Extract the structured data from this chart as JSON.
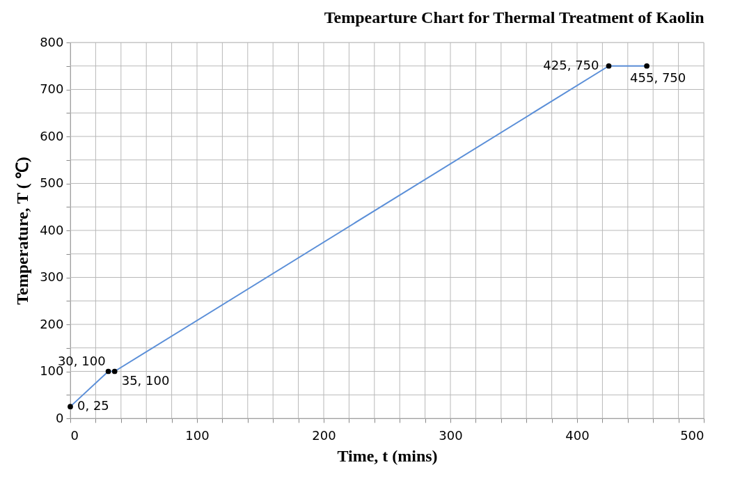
{
  "chart_data": {
    "type": "line",
    "title": "Tempearture Chart for Thermal Treatment of Kaolin",
    "xlabel": "Time, t (mins)",
    "ylabel": "Temperature, T ( ℃)",
    "x": [
      0,
      30,
      35,
      425,
      455
    ],
    "series": [
      {
        "color": "#5b8fd8",
        "values": [
          25,
          100,
          100,
          750,
          750
        ]
      }
    ],
    "xlim": [
      0,
      500
    ],
    "ylim": [
      0,
      800
    ],
    "xticks": [
      0,
      {
        "value": 20,
        "label": null
      },
      {
        "value": 40,
        "label": null
      },
      {
        "value": 60,
        "label": null
      },
      {
        "value": 80,
        "label": null
      },
      100,
      {
        "value": 120,
        "label": null
      },
      {
        "value": 140,
        "label": null
      },
      {
        "value": 160,
        "label": null
      },
      {
        "value": 180,
        "label": null
      },
      200,
      {
        "value": 220,
        "label": null
      },
      {
        "value": 240,
        "label": null
      },
      {
        "value": 260,
        "label": null
      },
      {
        "value": 280,
        "label": null
      },
      300,
      {
        "value": 320,
        "label": null
      },
      {
        "value": 340,
        "label": null
      },
      {
        "value": 360,
        "label": null
      },
      {
        "value": 380,
        "label": null
      },
      400,
      {
        "value": 420,
        "label": null
      },
      {
        "value": 440,
        "label": null
      },
      {
        "value": 460,
        "label": null
      },
      {
        "value": 480,
        "label": null
      },
      500
    ],
    "yticks": [
      0,
      {
        "value": 50,
        "label": null
      },
      100,
      {
        "value": 150,
        "label": null
      },
      200,
      {
        "value": 250,
        "label": null
      },
      300,
      {
        "value": 350,
        "label": null
      },
      400,
      {
        "value": 450,
        "label": null
      },
      500,
      {
        "value": 550,
        "label": null
      },
      600,
      {
        "value": 650,
        "label": null
      },
      700,
      {
        "value": 750,
        "label": null
      },
      800
    ],
    "grid": true,
    "marker": "circle",
    "line_style": "solid",
    "annotations": [
      {
        "text": "0, 25",
        "x": 0,
        "y": 25
      },
      {
        "text": "30, 100",
        "x": 30,
        "y": 100
      },
      {
        "text": "35, 100",
        "x": 35,
        "y": 100
      },
      {
        "text": "425, 750",
        "x": 425,
        "y": 750
      },
      {
        "text": "455, 750",
        "x": 455,
        "y": 750
      }
    ]
  }
}
